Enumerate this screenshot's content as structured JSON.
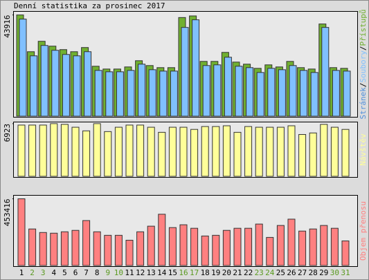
{
  "title": "Denní statistika za prosinec 2017",
  "chart_data": [
    {
      "type": "bar",
      "ylim": [
        0,
        45000
      ],
      "yticks": [
        43916
      ],
      "extra_legend": "Stránek",
      "extra_legend_color": "#4f8fdc",
      "legend_separator": "/",
      "series": [
        {
          "name": "Soubory",
          "color": "#80c0ff",
          "values": [
            42110,
            26170,
            30680,
            28580,
            26770,
            26170,
            27970,
            19850,
            19250,
            19250,
            19850,
            22560,
            20150,
            19550,
            19550,
            38500,
            41810,
            21960,
            22260,
            25570,
            21660,
            21060,
            18950,
            20750,
            20150,
            21960,
            19850,
            18950,
            38500,
            19850,
            19550
          ]
        },
        {
          "name": "Přístupů",
          "color": "#70b030",
          "values": [
            43916,
            27970,
            32490,
            30380,
            28880,
            27970,
            29780,
            21660,
            20450,
            20450,
            21360,
            24060,
            21960,
            21060,
            21060,
            42800,
            43500,
            23760,
            23760,
            27670,
            23460,
            22560,
            20750,
            22260,
            21360,
            23760,
            21060,
            20450,
            40000,
            21060,
            20750
          ]
        }
      ]
    },
    {
      "type": "bar",
      "ylim": [
        0,
        7000
      ],
      "yticks": [
        6923
      ],
      "series": [
        {
          "name": "Návštěv",
          "color": "#ffff99",
          "values": [
            6734,
            6734,
            6734,
            6923,
            6829,
            6450,
            5975,
            6923,
            5880,
            6450,
            6734,
            6734,
            6450,
            5785,
            6450,
            6450,
            6165,
            6545,
            6545,
            6640,
            5785,
            6545,
            6450,
            6450,
            6450,
            6640,
            5500,
            5700,
            6829,
            6450,
            6165
          ]
        }
      ]
    },
    {
      "type": "bar",
      "ylim": [
        0,
        470000
      ],
      "yticks": [
        453416
      ],
      "categories": [
        "1",
        "2",
        "3",
        "4",
        "5",
        "6",
        "7",
        "8",
        "9",
        "10",
        "11",
        "12",
        "13",
        "14",
        "15",
        "16",
        "17",
        "18",
        "19",
        "20",
        "21",
        "22",
        "23",
        "24",
        "25",
        "26",
        "27",
        "28",
        "29",
        "30",
        "31"
      ],
      "category_colors": [
        "#000000",
        "#5a9a20",
        "#5a9a20",
        "#000000",
        "#000000",
        "#000000",
        "#000000",
        "#000000",
        "#5a9a20",
        "#5a9a20",
        "#000000",
        "#000000",
        "#000000",
        "#000000",
        "#000000",
        "#5a9a20",
        "#5a9a20",
        "#000000",
        "#000000",
        "#000000",
        "#000000",
        "#000000",
        "#5a9a20",
        "#5a9a20",
        "#000000",
        "#000000",
        "#000000",
        "#000000",
        "#000000",
        "#5a9a20",
        "#5a9a20"
      ],
      "series": [
        {
          "name": "Objem přenosu",
          "color": "#ff8080",
          "values": [
            453416,
            248200,
            224300,
            219600,
            229100,
            238700,
            305500,
            229100,
            205200,
            205200,
            171800,
            229100,
            267300,
            348400,
            257700,
            276800,
            253000,
            200500,
            205200,
            238700,
            253000,
            253000,
            281600,
            190900,
            272100,
            315000,
            233900,
            248200,
            272100,
            253000,
            167100
          ]
        }
      ]
    }
  ]
}
